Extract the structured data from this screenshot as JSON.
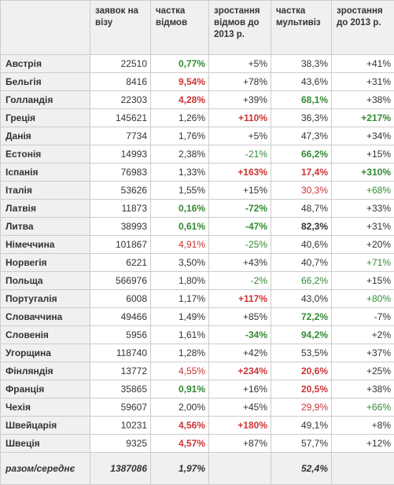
{
  "headers": [
    "",
    "заявок на візу",
    "частка відмов",
    "зростання відмов до 2013 р.",
    "частка мультивіз",
    "зростання до 2013 р."
  ],
  "colors": {
    "green": "#338a33",
    "red": "#cc3333",
    "neutral": "#333333",
    "header_bg": "#f0f0f0"
  },
  "rows": [
    {
      "country": "Австрія",
      "applications": "22510",
      "refusal_share": {
        "v": "0,77%",
        "c": "g",
        "b": true
      },
      "refusal_growth": {
        "v": "+5%",
        "c": "n",
        "b": false
      },
      "multivisa_share": {
        "v": "38,3%",
        "c": "n",
        "b": false
      },
      "growth": {
        "v": "+41%",
        "c": "n",
        "b": false
      }
    },
    {
      "country": "Бельгія",
      "applications": "8416",
      "refusal_share": {
        "v": "9,54%",
        "c": "r",
        "b": true
      },
      "refusal_growth": {
        "v": "+78%",
        "c": "n",
        "b": false
      },
      "multivisa_share": {
        "v": "43,6%",
        "c": "n",
        "b": false
      },
      "growth": {
        "v": "+31%",
        "c": "n",
        "b": false
      }
    },
    {
      "country": "Голландія",
      "applications": "22303",
      "refusal_share": {
        "v": "4,28%",
        "c": "r",
        "b": true
      },
      "refusal_growth": {
        "v": "+39%",
        "c": "n",
        "b": false
      },
      "multivisa_share": {
        "v": "68,1%",
        "c": "g",
        "b": true
      },
      "growth": {
        "v": "+38%",
        "c": "n",
        "b": false
      }
    },
    {
      "country": "Греція",
      "applications": "145621",
      "refusal_share": {
        "v": "1,26%",
        "c": "n",
        "b": false
      },
      "refusal_growth": {
        "v": "+110%",
        "c": "r",
        "b": true
      },
      "multivisa_share": {
        "v": "36,3%",
        "c": "n",
        "b": false
      },
      "growth": {
        "v": "+217%",
        "c": "g",
        "b": true
      }
    },
    {
      "country": "Данія",
      "applications": "7734",
      "refusal_share": {
        "v": "1,76%",
        "c": "n",
        "b": false
      },
      "refusal_growth": {
        "v": "+5%",
        "c": "n",
        "b": false
      },
      "multivisa_share": {
        "v": "47,3%",
        "c": "n",
        "b": false
      },
      "growth": {
        "v": "+34%",
        "c": "n",
        "b": false
      }
    },
    {
      "country": "Естонія",
      "applications": "14993",
      "refusal_share": {
        "v": "2,38%",
        "c": "n",
        "b": false
      },
      "refusal_growth": {
        "v": "-21%",
        "c": "g",
        "b": false
      },
      "multivisa_share": {
        "v": "66,2%",
        "c": "g",
        "b": true
      },
      "growth": {
        "v": "+15%",
        "c": "n",
        "b": false
      }
    },
    {
      "country": "Іспанія",
      "applications": "76983",
      "refusal_share": {
        "v": "1,33%",
        "c": "n",
        "b": false
      },
      "refusal_growth": {
        "v": "+163%",
        "c": "r",
        "b": true
      },
      "multivisa_share": {
        "v": "17,4%",
        "c": "r",
        "b": true
      },
      "growth": {
        "v": "+310%",
        "c": "g",
        "b": true
      }
    },
    {
      "country": "Італія",
      "applications": "53626",
      "refusal_share": {
        "v": "1,55%",
        "c": "n",
        "b": false
      },
      "refusal_growth": {
        "v": "+15%",
        "c": "n",
        "b": false
      },
      "multivisa_share": {
        "v": "30,3%",
        "c": "r",
        "b": false
      },
      "growth": {
        "v": "+68%",
        "c": "g",
        "b": false
      }
    },
    {
      "country": "Латвія",
      "applications": "11873",
      "refusal_share": {
        "v": "0,16%",
        "c": "g",
        "b": true
      },
      "refusal_growth": {
        "v": "-72%",
        "c": "g",
        "b": true
      },
      "multivisa_share": {
        "v": "48,7%",
        "c": "n",
        "b": false
      },
      "growth": {
        "v": "+33%",
        "c": "n",
        "b": false
      }
    },
    {
      "country": "Литва",
      "applications": "38993",
      "refusal_share": {
        "v": "0,61%",
        "c": "g",
        "b": true
      },
      "refusal_growth": {
        "v": "-47%",
        "c": "g",
        "b": true
      },
      "multivisa_share": {
        "v": "82,3%",
        "c": "n",
        "b": true
      },
      "growth": {
        "v": "+31%",
        "c": "n",
        "b": false
      }
    },
    {
      "country": "Німеччина",
      "applications": "101867",
      "refusal_share": {
        "v": "4,91%",
        "c": "r",
        "b": false
      },
      "refusal_growth": {
        "v": "-25%",
        "c": "g",
        "b": false
      },
      "multivisa_share": {
        "v": "40,6%",
        "c": "n",
        "b": false
      },
      "growth": {
        "v": "+20%",
        "c": "n",
        "b": false
      }
    },
    {
      "country": "Норвегія",
      "applications": "6221",
      "refusal_share": {
        "v": "3,50%",
        "c": "n",
        "b": false
      },
      "refusal_growth": {
        "v": "+43%",
        "c": "n",
        "b": false
      },
      "multivisa_share": {
        "v": "40,7%",
        "c": "n",
        "b": false
      },
      "growth": {
        "v": "+71%",
        "c": "g",
        "b": false
      }
    },
    {
      "country": "Польща",
      "applications": "566976",
      "refusal_share": {
        "v": "1,80%",
        "c": "n",
        "b": false
      },
      "refusal_growth": {
        "v": "-2%",
        "c": "g",
        "b": false
      },
      "multivisa_share": {
        "v": "66,2%",
        "c": "g",
        "b": false
      },
      "growth": {
        "v": "+15%",
        "c": "n",
        "b": false
      }
    },
    {
      "country": "Португалія",
      "applications": "6008",
      "refusal_share": {
        "v": "1,17%",
        "c": "n",
        "b": false
      },
      "refusal_growth": {
        "v": "+117%",
        "c": "r",
        "b": true
      },
      "multivisa_share": {
        "v": "43,0%",
        "c": "n",
        "b": false
      },
      "growth": {
        "v": "+80%",
        "c": "g",
        "b": false
      }
    },
    {
      "country": "Словаччина",
      "applications": "49466",
      "refusal_share": {
        "v": "1,49%",
        "c": "n",
        "b": false
      },
      "refusal_growth": {
        "v": "+85%",
        "c": "n",
        "b": false
      },
      "multivisa_share": {
        "v": "72,2%",
        "c": "g",
        "b": true
      },
      "growth": {
        "v": "-7%",
        "c": "n",
        "b": false
      }
    },
    {
      "country": "Словенія",
      "applications": "5956",
      "refusal_share": {
        "v": "1,61%",
        "c": "n",
        "b": false
      },
      "refusal_growth": {
        "v": "-34%",
        "c": "g",
        "b": true
      },
      "multivisa_share": {
        "v": "94,2%",
        "c": "g",
        "b": true
      },
      "growth": {
        "v": "+2%",
        "c": "n",
        "b": false
      }
    },
    {
      "country": "Угорщина",
      "applications": "118740",
      "refusal_share": {
        "v": "1,28%",
        "c": "n",
        "b": false
      },
      "refusal_growth": {
        "v": "+42%",
        "c": "n",
        "b": false
      },
      "multivisa_share": {
        "v": "53,5%",
        "c": "n",
        "b": false
      },
      "growth": {
        "v": "+37%",
        "c": "n",
        "b": false
      }
    },
    {
      "country": "Фінляндія",
      "applications": "13772",
      "refusal_share": {
        "v": "4,55%",
        "c": "r",
        "b": false
      },
      "refusal_growth": {
        "v": "+234%",
        "c": "r",
        "b": true
      },
      "multivisa_share": {
        "v": "20,6%",
        "c": "r",
        "b": true
      },
      "growth": {
        "v": "+25%",
        "c": "n",
        "b": false
      }
    },
    {
      "country": "Франція",
      "applications": "35865",
      "refusal_share": {
        "v": "0,91%",
        "c": "g",
        "b": true
      },
      "refusal_growth": {
        "v": "+16%",
        "c": "n",
        "b": false
      },
      "multivisa_share": {
        "v": "20,5%",
        "c": "r",
        "b": true
      },
      "growth": {
        "v": "+38%",
        "c": "n",
        "b": false
      }
    },
    {
      "country": "Чехія",
      "applications": "59607",
      "refusal_share": {
        "v": "2,00%",
        "c": "n",
        "b": false
      },
      "refusal_growth": {
        "v": "+45%",
        "c": "n",
        "b": false
      },
      "multivisa_share": {
        "v": "29,9%",
        "c": "r",
        "b": false
      },
      "growth": {
        "v": "+66%",
        "c": "g",
        "b": false
      }
    },
    {
      "country": "Швейцарія",
      "applications": "10231",
      "refusal_share": {
        "v": "4,56%",
        "c": "r",
        "b": true
      },
      "refusal_growth": {
        "v": "+180%",
        "c": "r",
        "b": true
      },
      "multivisa_share": {
        "v": "49,1%",
        "c": "n",
        "b": false
      },
      "growth": {
        "v": "+8%",
        "c": "n",
        "b": false
      }
    },
    {
      "country": "Швеція",
      "applications": "9325",
      "refusal_share": {
        "v": "4,57%",
        "c": "r",
        "b": true
      },
      "refusal_growth": {
        "v": "+87%",
        "c": "n",
        "b": false
      },
      "multivisa_share": {
        "v": "57,7%",
        "c": "n",
        "b": false
      },
      "growth": {
        "v": "+12%",
        "c": "n",
        "b": false
      }
    }
  ],
  "footer": {
    "label": "разом/середнє",
    "applications": "1387086",
    "refusal_share": "1,97%",
    "refusal_growth": "",
    "multivisa_share": "52,4%",
    "growth": ""
  }
}
